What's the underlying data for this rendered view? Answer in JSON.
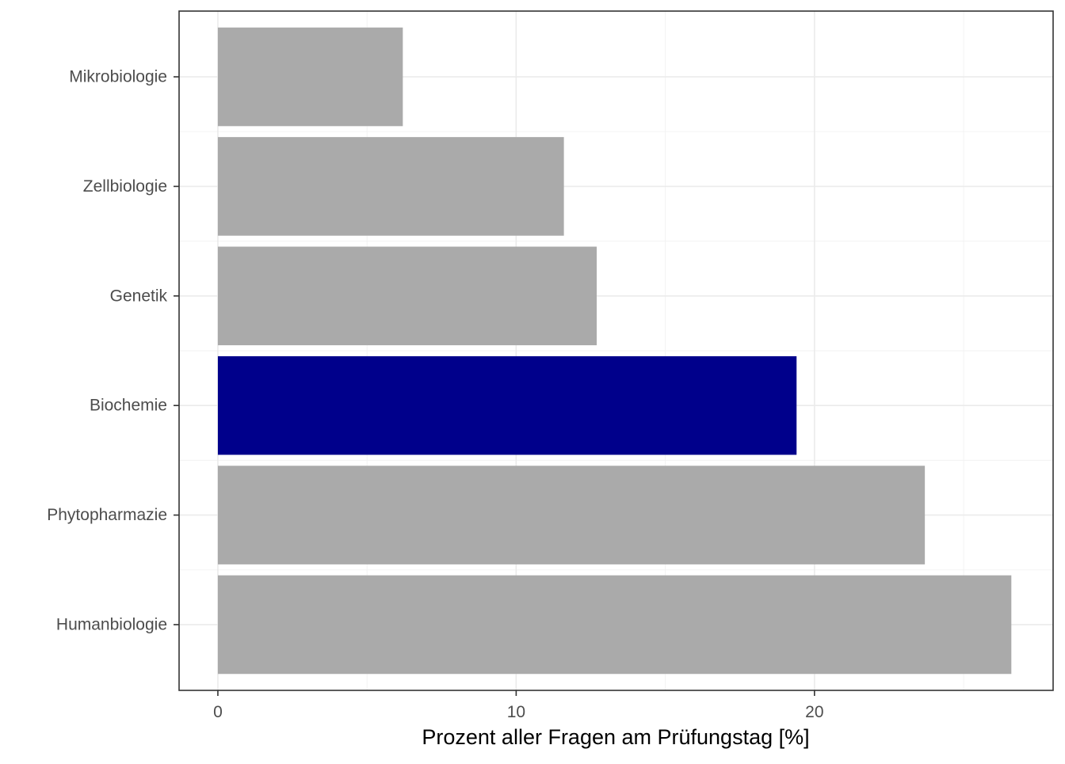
{
  "chart_data": {
    "type": "bar",
    "orientation": "horizontal",
    "categories": [
      "Humanbiologie",
      "Phytopharmazie",
      "Biochemie",
      "Genetik",
      "Zellbiologie",
      "Mikrobiologie"
    ],
    "values": [
      26.6,
      23.7,
      19.4,
      12.7,
      11.6,
      6.2
    ],
    "highlight": "Biochemie",
    "xlabel": "Prozent aller Fragen am Prüfungstag [%]",
    "ylabel": "",
    "xlim": [
      -1.3,
      28.0
    ],
    "xticks": [
      0,
      10,
      20
    ],
    "xtick_labels": [
      "0",
      "10",
      "20"
    ],
    "grid": true,
    "legend": "none",
    "colors": {
      "bar": "#aaaaaa",
      "highlight": "#00008b",
      "grid_major": "#ebebeb",
      "grid_minor": "#f2f2f2",
      "border": "#333333"
    }
  }
}
